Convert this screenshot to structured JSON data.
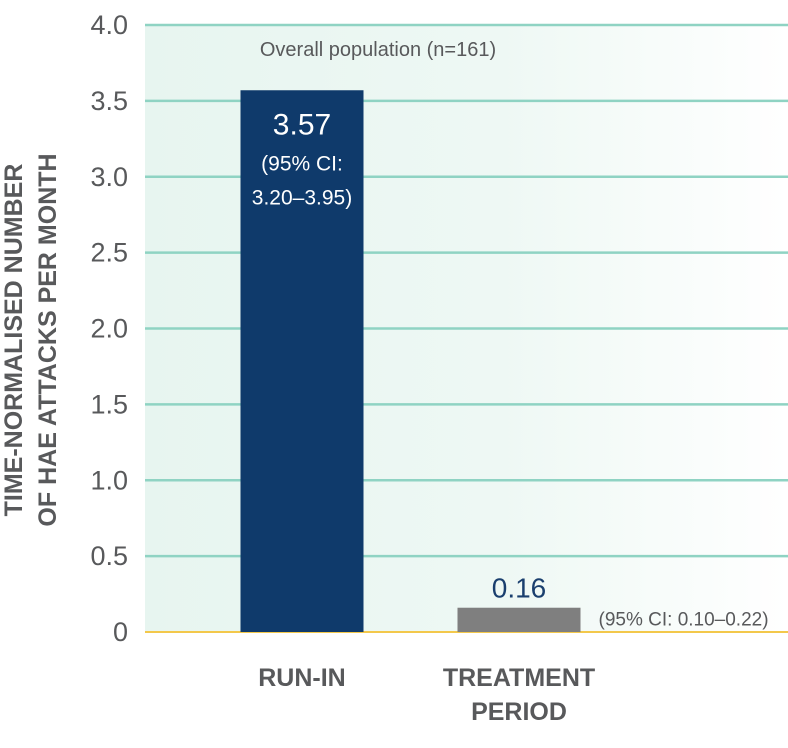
{
  "chart_data": {
    "type": "bar",
    "subtitle": "Overall population (n=161)",
    "ylabel_lines": [
      "TIME-NORMALISED NUMBER",
      "OF HAE ATTACKS PER MONTH"
    ],
    "ylim": [
      0,
      4.0
    ],
    "yticks": [
      0,
      0.5,
      1.0,
      1.5,
      2.0,
      2.5,
      3.0,
      3.5,
      4.0
    ],
    "ytick_labels": [
      "0",
      "0.5",
      "1.0",
      "1.5",
      "2.0",
      "2.5",
      "3.0",
      "3.5",
      "4.0"
    ],
    "grid": true,
    "bars": [
      {
        "category_lines": [
          "RUN-IN"
        ],
        "value": 3.57,
        "value_label": "3.57",
        "ci_lines": [
          "(95% CI:",
          "3.20–3.95)"
        ],
        "color": "#0f3a6b"
      },
      {
        "category_lines": [
          "TREATMENT",
          "PERIOD"
        ],
        "value": 0.16,
        "value_label": "0.16",
        "ci_lines": [
          "(95% CI: 0.10–0.22)"
        ],
        "color": "#7f7f7f"
      }
    ],
    "colors": {
      "grid": "#8fd3c3",
      "baseline": "#f3c84b",
      "background": "#e7f5f0",
      "text": "#58595b",
      "value_outside": "#1a3f6e"
    }
  }
}
